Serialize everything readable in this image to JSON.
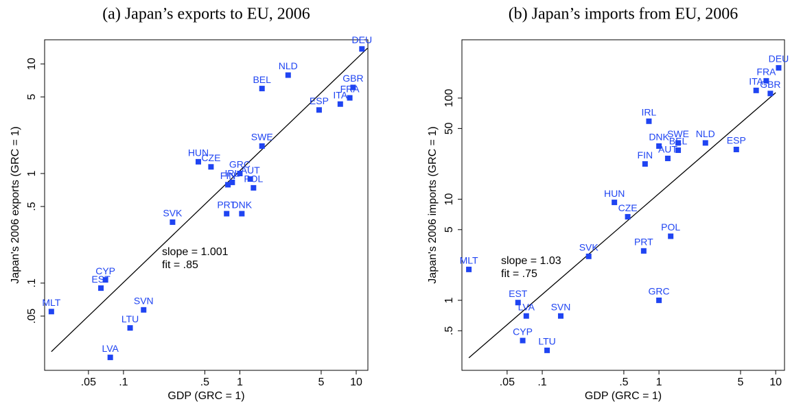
{
  "chart_data": [
    {
      "type": "scatter",
      "title": "(a) Japan’s exports to EU, 2006",
      "xlabel": "GDP (GRC = 1)",
      "ylabel": "Japan's 2006 exports (GRC = 1)",
      "xscale": "log",
      "yscale": "log",
      "grid": false,
      "color": "#1f44f2",
      "xlim": [
        0.021,
        12.6
      ],
      "ylim": [
        0.016,
        16.6
      ],
      "xticks": [
        {
          "value": 0.05,
          "label": ".05"
        },
        {
          "value": 0.1,
          "label": ".1"
        },
        {
          "value": 0.5,
          "label": ".5"
        },
        1,
        5,
        10
      ],
      "yticks": [
        {
          "value": 0.05,
          "label": ".05"
        },
        {
          "value": 0.1,
          "label": ".1"
        },
        {
          "value": 0.5,
          "label": ".5"
        },
        1,
        5,
        10
      ],
      "labels": [
        "DEU",
        "GBR",
        "NLD",
        "BEL",
        "FRA",
        "ITA",
        "ESP",
        "SWE",
        "HUN",
        "CZE",
        "GRC",
        "AUT",
        "IRL",
        "FIN",
        "POL",
        "PRT",
        "DNK",
        "SVK",
        "CYP",
        "EST",
        "MLT",
        "SVN",
        "LTU",
        "LVA"
      ],
      "x": [
        11.2,
        9.4,
        2.6,
        1.55,
        8.8,
        7.3,
        4.8,
        1.55,
        0.44,
        0.565,
        1,
        1.23,
        0.86,
        0.79,
        1.31,
        0.77,
        1.04,
        0.264,
        0.07,
        0.064,
        0.024,
        0.149,
        0.114,
        0.077
      ],
      "series": [
        {
          "color": "#1f44f2",
          "values": [
            13.7,
            6.1,
            7.9,
            5.96,
            4.9,
            4.3,
            3.8,
            1.78,
            1.28,
            1.15,
            1,
            0.89,
            0.83,
            0.79,
            0.74,
            0.43,
            0.43,
            0.36,
            0.107,
            0.09,
            0.055,
            0.057,
            0.039,
            0.021
          ]
        }
      ],
      "fit_line": {
        "x": [
          0.024,
          12.5
        ],
        "y": [
          0.0237,
          13.9
        ]
      },
      "annotations": [
        "slope = 1.001",
        "fit = .85"
      ]
    },
    {
      "type": "scatter",
      "title": "(b) Japan’s imports from EU, 2006",
      "xlabel": "GDP (GRC = 1)",
      "ylabel": "Japan's 2006 imports (GRC = 1)",
      "xscale": "log",
      "yscale": "log",
      "grid": false,
      "color": "#1f44f2",
      "xlim": [
        0.0205,
        11.9
      ],
      "ylim": [
        0.203,
        377
      ],
      "xticks": [
        {
          "value": 0.05,
          "label": ".05"
        },
        {
          "value": 0.1,
          "label": ".1"
        },
        {
          "value": 0.5,
          "label": ".5"
        },
        1,
        5,
        10
      ],
      "yticks": [
        {
          "value": 0.5,
          "label": ".5"
        },
        1,
        5,
        10,
        50,
        100
      ],
      "labels": [
        "DEU",
        "FRA",
        "ITA",
        "GBR",
        "IRL",
        "NLD",
        "ESP",
        "DNK",
        "SWE",
        "BEL",
        "AUT",
        "FIN",
        "HUN",
        "CZE",
        "POL",
        "PRT",
        "SVK",
        "MLT",
        "EST",
        "GRC",
        "LVA",
        "SVN",
        "CYP",
        "LTU"
      ],
      "x": [
        10.6,
        8.3,
        6.8,
        9.0,
        0.82,
        2.5,
        4.6,
        1,
        1.46,
        1.46,
        1.19,
        0.76,
        0.415,
        0.54,
        1.26,
        0.74,
        0.25,
        0.0235,
        0.062,
        1,
        0.073,
        0.144,
        0.068,
        0.11
      ],
      "series": [
        {
          "color": "#1f44f2",
          "values": [
            199,
            148,
            119,
            111,
            59,
            36,
            31,
            33.5,
            36,
            30.5,
            25.3,
            22.3,
            9.3,
            6.7,
            4.3,
            3.08,
            2.72,
            2.02,
            0.95,
            1,
            0.7,
            0.7,
            0.4,
            0.32
          ]
        }
      ],
      "fit_line": {
        "x": [
          0.0235,
          10
        ],
        "y": [
          0.27,
          113
        ]
      },
      "annotations": [
        "slope = 1.03",
        "fit = .75"
      ]
    }
  ]
}
